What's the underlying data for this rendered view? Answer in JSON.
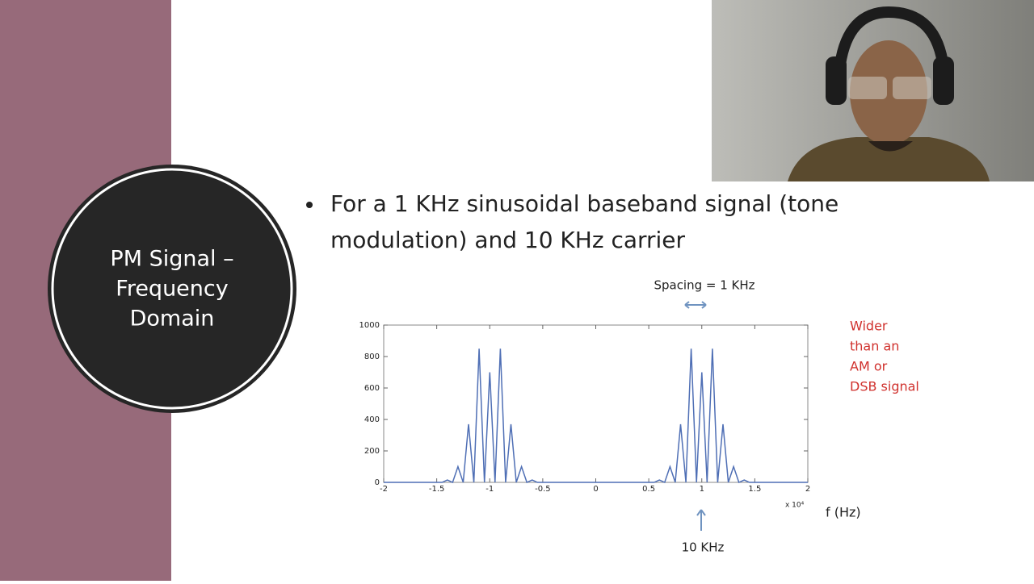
{
  "slide": {
    "title_lines": [
      "PM Signal –",
      "Frequency",
      "Domain"
    ],
    "bullet_lines": [
      "For a 1 KHz sinusoidal baseband signal (tone",
      "modulation) and 10 KHz carrier"
    ]
  },
  "chart_data": {
    "type": "line",
    "x": [
      -2,
      -1.45,
      -1.4,
      -1.35,
      -1.3,
      -1.25,
      -1.2,
      -1.15,
      -1.1,
      -1.05,
      -1,
      -0.95,
      -0.9,
      -0.85,
      -0.8,
      -0.75,
      -0.7,
      -0.65,
      -0.6,
      -0.55,
      0.55,
      0.6,
      0.65,
      0.7,
      0.75,
      0.8,
      0.85,
      0.9,
      0.95,
      1,
      1.05,
      1.1,
      1.15,
      1.2,
      1.25,
      1.3,
      1.35,
      1.4,
      1.45,
      2
    ],
    "values": [
      0,
      0,
      15,
      0,
      100,
      0,
      370,
      0,
      850,
      0,
      700,
      0,
      850,
      0,
      370,
      0,
      100,
      0,
      15,
      0,
      0,
      15,
      0,
      100,
      0,
      370,
      0,
      850,
      0,
      700,
      0,
      850,
      0,
      370,
      0,
      100,
      0,
      15,
      0,
      0
    ],
    "color": "#4f6fb5",
    "xlim": [
      -2,
      2
    ],
    "ylim": [
      0,
      1000
    ],
    "xticks": [
      -2,
      -1.5,
      -1,
      -0.5,
      0,
      0.5,
      1,
      1.5,
      2
    ],
    "yticks": [
      0,
      200,
      400,
      600,
      800,
      1000
    ],
    "x_multiplier": "x 10⁴",
    "x_label": "f (Hz)",
    "annotations": {
      "spacing": "Spacing = 1 KHz",
      "carrier": "10 KHz",
      "note_lines": [
        "Wider",
        "than an",
        "AM or",
        "DSB signal"
      ]
    }
  }
}
